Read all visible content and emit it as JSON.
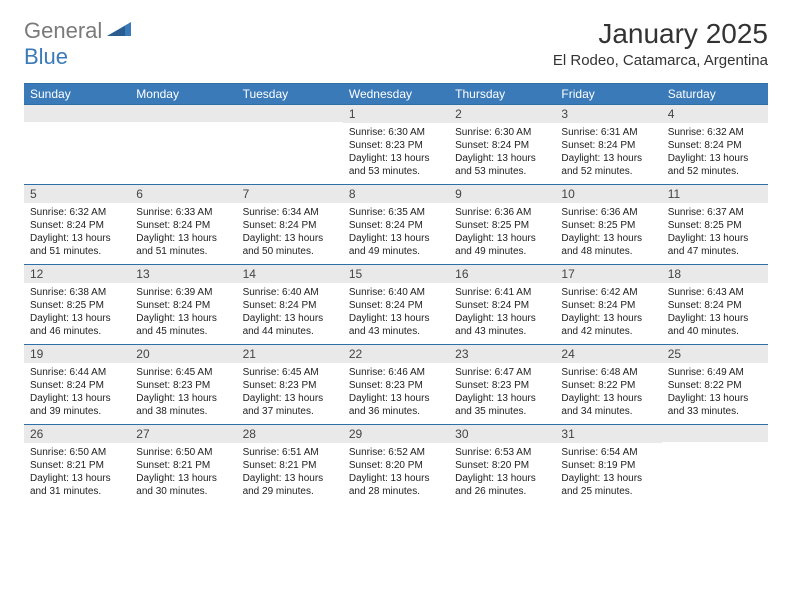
{
  "logo": {
    "general": "General",
    "blue": "Blue"
  },
  "title": "January 2025",
  "location": "El Rodeo, Catamarca, Argentina",
  "colors": {
    "header_bg": "#3a7ab8",
    "header_text": "#ffffff",
    "daynum_bg": "#e9e9e9",
    "border": "#2f6fa8",
    "text": "#222222",
    "logo_gray": "#7a7a7a",
    "logo_blue": "#3a7ab8"
  },
  "weekdays": [
    "Sunday",
    "Monday",
    "Tuesday",
    "Wednesday",
    "Thursday",
    "Friday",
    "Saturday"
  ],
  "weeks": [
    [
      {
        "n": "",
        "sunrise": "",
        "sunset": "",
        "daylight": ""
      },
      {
        "n": "",
        "sunrise": "",
        "sunset": "",
        "daylight": ""
      },
      {
        "n": "",
        "sunrise": "",
        "sunset": "",
        "daylight": ""
      },
      {
        "n": "1",
        "sunrise": "Sunrise: 6:30 AM",
        "sunset": "Sunset: 8:23 PM",
        "daylight": "Daylight: 13 hours and 53 minutes."
      },
      {
        "n": "2",
        "sunrise": "Sunrise: 6:30 AM",
        "sunset": "Sunset: 8:24 PM",
        "daylight": "Daylight: 13 hours and 53 minutes."
      },
      {
        "n": "3",
        "sunrise": "Sunrise: 6:31 AM",
        "sunset": "Sunset: 8:24 PM",
        "daylight": "Daylight: 13 hours and 52 minutes."
      },
      {
        "n": "4",
        "sunrise": "Sunrise: 6:32 AM",
        "sunset": "Sunset: 8:24 PM",
        "daylight": "Daylight: 13 hours and 52 minutes."
      }
    ],
    [
      {
        "n": "5",
        "sunrise": "Sunrise: 6:32 AM",
        "sunset": "Sunset: 8:24 PM",
        "daylight": "Daylight: 13 hours and 51 minutes."
      },
      {
        "n": "6",
        "sunrise": "Sunrise: 6:33 AM",
        "sunset": "Sunset: 8:24 PM",
        "daylight": "Daylight: 13 hours and 51 minutes."
      },
      {
        "n": "7",
        "sunrise": "Sunrise: 6:34 AM",
        "sunset": "Sunset: 8:24 PM",
        "daylight": "Daylight: 13 hours and 50 minutes."
      },
      {
        "n": "8",
        "sunrise": "Sunrise: 6:35 AM",
        "sunset": "Sunset: 8:24 PM",
        "daylight": "Daylight: 13 hours and 49 minutes."
      },
      {
        "n": "9",
        "sunrise": "Sunrise: 6:36 AM",
        "sunset": "Sunset: 8:25 PM",
        "daylight": "Daylight: 13 hours and 49 minutes."
      },
      {
        "n": "10",
        "sunrise": "Sunrise: 6:36 AM",
        "sunset": "Sunset: 8:25 PM",
        "daylight": "Daylight: 13 hours and 48 minutes."
      },
      {
        "n": "11",
        "sunrise": "Sunrise: 6:37 AM",
        "sunset": "Sunset: 8:25 PM",
        "daylight": "Daylight: 13 hours and 47 minutes."
      }
    ],
    [
      {
        "n": "12",
        "sunrise": "Sunrise: 6:38 AM",
        "sunset": "Sunset: 8:25 PM",
        "daylight": "Daylight: 13 hours and 46 minutes."
      },
      {
        "n": "13",
        "sunrise": "Sunrise: 6:39 AM",
        "sunset": "Sunset: 8:24 PM",
        "daylight": "Daylight: 13 hours and 45 minutes."
      },
      {
        "n": "14",
        "sunrise": "Sunrise: 6:40 AM",
        "sunset": "Sunset: 8:24 PM",
        "daylight": "Daylight: 13 hours and 44 minutes."
      },
      {
        "n": "15",
        "sunrise": "Sunrise: 6:40 AM",
        "sunset": "Sunset: 8:24 PM",
        "daylight": "Daylight: 13 hours and 43 minutes."
      },
      {
        "n": "16",
        "sunrise": "Sunrise: 6:41 AM",
        "sunset": "Sunset: 8:24 PM",
        "daylight": "Daylight: 13 hours and 43 minutes."
      },
      {
        "n": "17",
        "sunrise": "Sunrise: 6:42 AM",
        "sunset": "Sunset: 8:24 PM",
        "daylight": "Daylight: 13 hours and 42 minutes."
      },
      {
        "n": "18",
        "sunrise": "Sunrise: 6:43 AM",
        "sunset": "Sunset: 8:24 PM",
        "daylight": "Daylight: 13 hours and 40 minutes."
      }
    ],
    [
      {
        "n": "19",
        "sunrise": "Sunrise: 6:44 AM",
        "sunset": "Sunset: 8:24 PM",
        "daylight": "Daylight: 13 hours and 39 minutes."
      },
      {
        "n": "20",
        "sunrise": "Sunrise: 6:45 AM",
        "sunset": "Sunset: 8:23 PM",
        "daylight": "Daylight: 13 hours and 38 minutes."
      },
      {
        "n": "21",
        "sunrise": "Sunrise: 6:45 AM",
        "sunset": "Sunset: 8:23 PM",
        "daylight": "Daylight: 13 hours and 37 minutes."
      },
      {
        "n": "22",
        "sunrise": "Sunrise: 6:46 AM",
        "sunset": "Sunset: 8:23 PM",
        "daylight": "Daylight: 13 hours and 36 minutes."
      },
      {
        "n": "23",
        "sunrise": "Sunrise: 6:47 AM",
        "sunset": "Sunset: 8:23 PM",
        "daylight": "Daylight: 13 hours and 35 minutes."
      },
      {
        "n": "24",
        "sunrise": "Sunrise: 6:48 AM",
        "sunset": "Sunset: 8:22 PM",
        "daylight": "Daylight: 13 hours and 34 minutes."
      },
      {
        "n": "25",
        "sunrise": "Sunrise: 6:49 AM",
        "sunset": "Sunset: 8:22 PM",
        "daylight": "Daylight: 13 hours and 33 minutes."
      }
    ],
    [
      {
        "n": "26",
        "sunrise": "Sunrise: 6:50 AM",
        "sunset": "Sunset: 8:21 PM",
        "daylight": "Daylight: 13 hours and 31 minutes."
      },
      {
        "n": "27",
        "sunrise": "Sunrise: 6:50 AM",
        "sunset": "Sunset: 8:21 PM",
        "daylight": "Daylight: 13 hours and 30 minutes."
      },
      {
        "n": "28",
        "sunrise": "Sunrise: 6:51 AM",
        "sunset": "Sunset: 8:21 PM",
        "daylight": "Daylight: 13 hours and 29 minutes."
      },
      {
        "n": "29",
        "sunrise": "Sunrise: 6:52 AM",
        "sunset": "Sunset: 8:20 PM",
        "daylight": "Daylight: 13 hours and 28 minutes."
      },
      {
        "n": "30",
        "sunrise": "Sunrise: 6:53 AM",
        "sunset": "Sunset: 8:20 PM",
        "daylight": "Daylight: 13 hours and 26 minutes."
      },
      {
        "n": "31",
        "sunrise": "Sunrise: 6:54 AM",
        "sunset": "Sunset: 8:19 PM",
        "daylight": "Daylight: 13 hours and 25 minutes."
      },
      {
        "n": "",
        "sunrise": "",
        "sunset": "",
        "daylight": ""
      }
    ]
  ]
}
